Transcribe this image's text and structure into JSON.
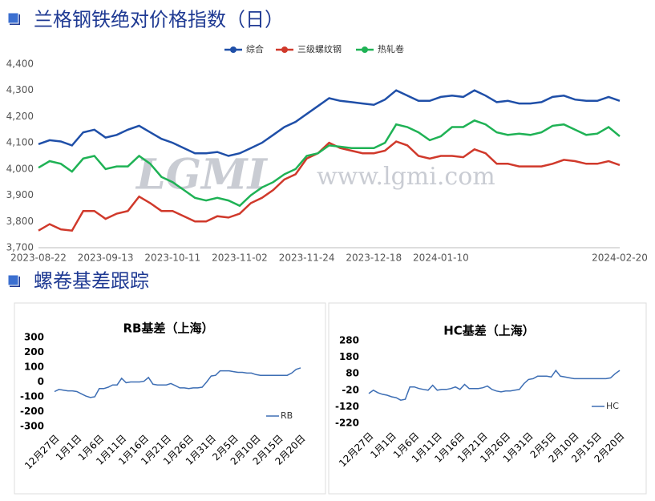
{
  "headings": [
    "兰格钢铁绝对价格指数（日）",
    "螺卷基差跟踪"
  ],
  "watermark": {
    "logo": "LGMI",
    "url": "www.lgmi.com"
  },
  "chart_data": [
    {
      "type": "line",
      "legend": "top",
      "categories": [
        "2023-08-22",
        null,
        null,
        null,
        null,
        null,
        "2023-09-13",
        null,
        null,
        null,
        null,
        null,
        "2023-10-11",
        null,
        null,
        null,
        null,
        null,
        "2023-11-02",
        null,
        null,
        null,
        null,
        null,
        "2023-11-24",
        null,
        null,
        null,
        null,
        null,
        "2023-12-18",
        null,
        null,
        null,
        null,
        null,
        "2024-01-10",
        null,
        null,
        null,
        null,
        null,
        null,
        null,
        null,
        null,
        null,
        null,
        null,
        null,
        null,
        null,
        "2024-02-20"
      ],
      "ylim": [
        3700,
        4400
      ],
      "yticks": [
        {
          "value": 3700,
          "label": "3,700"
        },
        {
          "value": 3800,
          "label": "3,800"
        },
        {
          "value": 3900,
          "label": "3,900"
        },
        {
          "value": 4000,
          "label": "4,000"
        },
        {
          "value": 4100,
          "label": "4,100"
        },
        {
          "value": 4200,
          "label": "4,200"
        },
        {
          "value": 4300,
          "label": "4,300"
        },
        {
          "value": 4400,
          "label": "4,400"
        }
      ],
      "series": [
        {
          "name": "综合",
          "color": "#1f4fa8",
          "values": [
            4095,
            4110,
            4105,
            4090,
            4140,
            4150,
            4120,
            4130,
            4150,
            4165,
            4140,
            4115,
            4100,
            4080,
            4060,
            4060,
            4065,
            4050,
            4060,
            4080,
            4100,
            4130,
            4160,
            4180,
            4210,
            4240,
            4270,
            4260,
            4255,
            4250,
            4245,
            4265,
            4300,
            4280,
            4260,
            4260,
            4275,
            4280,
            4275,
            4300,
            4280,
            4255,
            4260,
            4250,
            4250,
            4255,
            4275,
            4280,
            4265,
            4260,
            4260,
            4275,
            4260
          ]
        },
        {
          "name": "三级螺纹钢",
          "color": "#d0392b",
          "values": [
            3765,
            3790,
            3770,
            3765,
            3840,
            3840,
            3810,
            3830,
            3840,
            3895,
            3870,
            3840,
            3840,
            3820,
            3800,
            3800,
            3820,
            3815,
            3830,
            3870,
            3890,
            3920,
            3960,
            3980,
            4040,
            4060,
            4100,
            4080,
            4070,
            4060,
            4060,
            4070,
            4105,
            4090,
            4050,
            4040,
            4050,
            4050,
            4045,
            4075,
            4060,
            4020,
            4020,
            4010,
            4010,
            4010,
            4020,
            4035,
            4030,
            4020,
            4020,
            4030,
            4015
          ]
        },
        {
          "name": "热轧卷",
          "color": "#1fb255",
          "values": [
            4005,
            4030,
            4020,
            3990,
            4040,
            4050,
            4000,
            4010,
            4010,
            4050,
            4020,
            3970,
            3950,
            3920,
            3890,
            3880,
            3890,
            3880,
            3860,
            3900,
            3930,
            3950,
            3980,
            4000,
            4050,
            4060,
            4090,
            4085,
            4080,
            4080,
            4080,
            4100,
            4170,
            4160,
            4140,
            4110,
            4125,
            4160,
            4160,
            4185,
            4170,
            4140,
            4130,
            4135,
            4130,
            4140,
            4165,
            4170,
            4150,
            4130,
            4135,
            4160,
            4125
          ]
        }
      ]
    },
    {
      "type": "line",
      "title": "RB基差（上海）",
      "legend": "lower right",
      "categories": [
        "12月27日",
        null,
        null,
        null,
        null,
        "1月1日",
        null,
        null,
        null,
        null,
        "1月6日",
        null,
        null,
        null,
        null,
        "1月11日",
        null,
        null,
        null,
        null,
        "1月16日",
        null,
        null,
        null,
        null,
        "1月21日",
        null,
        null,
        null,
        null,
        "1月26日",
        null,
        null,
        null,
        null,
        "1月31日",
        null,
        null,
        null,
        null,
        "2月5日",
        null,
        null,
        null,
        null,
        "2月10日",
        null,
        null,
        null,
        null,
        "2月15日",
        null,
        null,
        null,
        null,
        "2月20日"
      ],
      "ylim": [
        -300,
        300
      ],
      "yticks": [
        -300,
        -200,
        -100,
        0,
        100,
        200,
        300
      ],
      "series": [
        {
          "name": "RB",
          "color": "#3d6eb4",
          "values": [
            -65,
            -50,
            -55,
            -60,
            -60,
            -65,
            -80,
            -95,
            -105,
            -100,
            -45,
            -45,
            -35,
            -20,
            -20,
            25,
            -5,
            0,
            0,
            0,
            5,
            30,
            -15,
            -20,
            -20,
            -20,
            -10,
            -25,
            -40,
            -40,
            -45,
            -40,
            -40,
            -35,
            0,
            40,
            45,
            75,
            75,
            75,
            70,
            65,
            65,
            60,
            60,
            50,
            45,
            45,
            45,
            45,
            45,
            45,
            45,
            60,
            85,
            95
          ]
        }
      ]
    },
    {
      "type": "line",
      "title": "HC基差（上海）",
      "legend": "lower right",
      "categories": [
        "12月27日",
        null,
        null,
        null,
        null,
        "1月1日",
        null,
        null,
        null,
        null,
        "1月6日",
        null,
        null,
        null,
        null,
        "1月11日",
        null,
        null,
        null,
        null,
        "1月16日",
        null,
        null,
        null,
        null,
        "1月21日",
        null,
        null,
        null,
        null,
        "1月26日",
        null,
        null,
        null,
        null,
        "1月31日",
        null,
        null,
        null,
        null,
        "2月5日",
        null,
        null,
        null,
        null,
        "2月10日",
        null,
        null,
        null,
        null,
        "2月15日",
        null,
        null,
        null,
        null,
        "2月20日"
      ],
      "ylim": [
        -220,
        280
      ],
      "yticks": [
        -220,
        -120,
        -20,
        80,
        180,
        280
      ],
      "series": [
        {
          "name": "HC",
          "color": "#3d6eb4",
          "values": [
            -40,
            -20,
            -35,
            -45,
            -50,
            -60,
            -65,
            -80,
            -75,
            0,
            0,
            -10,
            -15,
            -20,
            10,
            -20,
            -15,
            -15,
            -10,
            0,
            -15,
            15,
            -10,
            -10,
            -10,
            -5,
            5,
            -15,
            -25,
            -30,
            -25,
            -25,
            -20,
            -15,
            20,
            45,
            50,
            65,
            65,
            65,
            60,
            100,
            65,
            60,
            55,
            50,
            50,
            50,
            50,
            50,
            50,
            50,
            50,
            55,
            80,
            100
          ]
        }
      ]
    }
  ]
}
